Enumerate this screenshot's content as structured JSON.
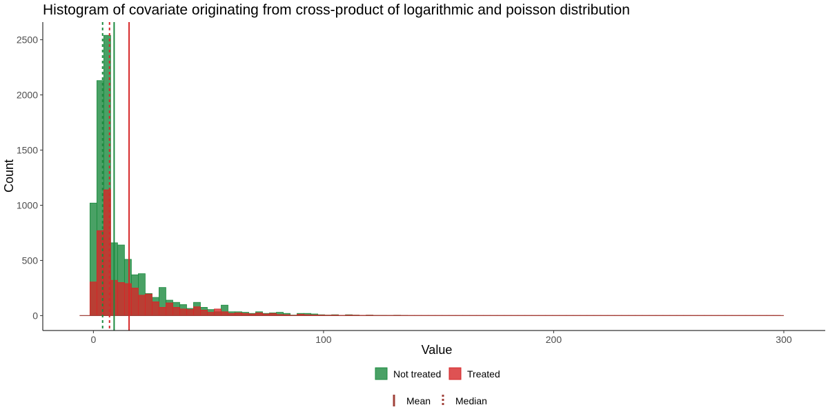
{
  "chart_data": {
    "type": "bar",
    "title": "Histogram of covariate originating from cross-product of logarithmic and poisson distribution",
    "xlabel": "Value",
    "ylabel": "Count",
    "xlim": [
      -22,
      318
    ],
    "ylim": [
      -135,
      2660
    ],
    "x_ticks": [
      0,
      100,
      200,
      300
    ],
    "x_tick_labels": [
      "0",
      "100",
      "200",
      "300"
    ],
    "y_ticks": [
      0,
      500,
      1000,
      1500,
      2000,
      2500
    ],
    "y_tick_labels": [
      "0",
      "500",
      "1000",
      "1500",
      "2000",
      "2500"
    ],
    "grid": false,
    "bin_width": 3,
    "bar_bottom": 0,
    "baseline_range": [
      -6,
      300
    ],
    "series": [
      {
        "name": "Not treated",
        "color": "#1b8a3e",
        "bins": [
          [
            0,
            1020
          ],
          [
            3,
            2130
          ],
          [
            6,
            2540
          ],
          [
            9,
            660
          ],
          [
            12,
            640
          ],
          [
            15,
            510
          ],
          [
            18,
            370
          ],
          [
            21,
            380
          ],
          [
            24,
            200
          ],
          [
            27,
            165
          ],
          [
            30,
            255
          ],
          [
            33,
            140
          ],
          [
            36,
            120
          ],
          [
            39,
            100
          ],
          [
            42,
            65
          ],
          [
            45,
            120
          ],
          [
            48,
            75
          ],
          [
            51,
            55
          ],
          [
            54,
            35
          ],
          [
            57,
            95
          ],
          [
            60,
            35
          ],
          [
            63,
            35
          ],
          [
            66,
            30
          ],
          [
            69,
            20
          ],
          [
            72,
            35
          ],
          [
            75,
            20
          ],
          [
            78,
            25
          ],
          [
            81,
            30
          ],
          [
            84,
            20
          ],
          [
            87,
            5
          ],
          [
            90,
            20
          ],
          [
            93,
            20
          ],
          [
            96,
            15
          ],
          [
            99,
            8
          ],
          [
            102,
            5
          ],
          [
            105,
            8
          ],
          [
            108,
            3
          ],
          [
            111,
            8
          ],
          [
            114,
            5
          ],
          [
            117,
            3
          ],
          [
            120,
            5
          ],
          [
            123,
            3
          ],
          [
            126,
            3
          ],
          [
            129,
            2
          ],
          [
            132,
            4
          ],
          [
            135,
            2
          ]
        ]
      },
      {
        "name": "Treated",
        "color": "#d62728",
        "bins": [
          [
            0,
            305
          ],
          [
            3,
            770
          ],
          [
            6,
            1140
          ],
          [
            9,
            320
          ],
          [
            12,
            300
          ],
          [
            15,
            290
          ],
          [
            18,
            250
          ],
          [
            21,
            185
          ],
          [
            24,
            195
          ],
          [
            27,
            125
          ],
          [
            30,
            75
          ],
          [
            33,
            115
          ],
          [
            36,
            75
          ],
          [
            39,
            60
          ],
          [
            42,
            55
          ],
          [
            45,
            80
          ],
          [
            48,
            50
          ],
          [
            51,
            30
          ],
          [
            54,
            60
          ],
          [
            57,
            35
          ],
          [
            60,
            20
          ],
          [
            63,
            25
          ],
          [
            66,
            20
          ],
          [
            69,
            15
          ],
          [
            72,
            25
          ],
          [
            75,
            15
          ],
          [
            78,
            20
          ],
          [
            81,
            10
          ],
          [
            84,
            8
          ],
          [
            87,
            3
          ],
          [
            90,
            12
          ],
          [
            93,
            8
          ],
          [
            96,
            6
          ],
          [
            99,
            5
          ],
          [
            102,
            4
          ],
          [
            105,
            5
          ],
          [
            108,
            3
          ],
          [
            111,
            5
          ],
          [
            114,
            4
          ],
          [
            117,
            3
          ],
          [
            120,
            4
          ],
          [
            123,
            2
          ],
          [
            126,
            2
          ],
          [
            129,
            2
          ],
          [
            132,
            3
          ],
          [
            135,
            2
          ],
          [
            138,
            2
          ],
          [
            141,
            2
          ],
          [
            144,
            2
          ],
          [
            147,
            2
          ],
          [
            150,
            2
          ],
          [
            153,
            2
          ],
          [
            156,
            2
          ],
          [
            159,
            2
          ],
          [
            162,
            2
          ],
          [
            165,
            2
          ],
          [
            168,
            2
          ],
          [
            171,
            2
          ],
          [
            174,
            2
          ],
          [
            177,
            2
          ],
          [
            180,
            2
          ],
          [
            183,
            2
          ],
          [
            186,
            2
          ],
          [
            189,
            2
          ],
          [
            192,
            2
          ],
          [
            195,
            2
          ],
          [
            198,
            2
          ],
          [
            201,
            2
          ],
          [
            204,
            2
          ],
          [
            207,
            2
          ],
          [
            210,
            2
          ],
          [
            213,
            2
          ],
          [
            216,
            2
          ],
          [
            219,
            2
          ],
          [
            222,
            2
          ],
          [
            225,
            2
          ],
          [
            228,
            2
          ],
          [
            231,
            2
          ],
          [
            234,
            2
          ],
          [
            237,
            2
          ],
          [
            240,
            2
          ],
          [
            243,
            2
          ],
          [
            246,
            2
          ],
          [
            249,
            2
          ],
          [
            252,
            2
          ],
          [
            255,
            2
          ],
          [
            258,
            2
          ],
          [
            261,
            2
          ],
          [
            264,
            2
          ],
          [
            267,
            2
          ],
          [
            270,
            2
          ],
          [
            273,
            2
          ],
          [
            276,
            2
          ],
          [
            279,
            2
          ],
          [
            282,
            2
          ],
          [
            285,
            2
          ],
          [
            288,
            2
          ],
          [
            291,
            2
          ],
          [
            294,
            2
          ],
          [
            297,
            2
          ]
        ]
      }
    ],
    "reference_lines": [
      {
        "series": "Not treated",
        "stat": "Mean",
        "x": 9,
        "style": "solid",
        "color": "#1b8a3e"
      },
      {
        "series": "Not treated",
        "stat": "Median",
        "x": 4,
        "style": "dashed",
        "color": "#1b8a3e"
      },
      {
        "series": "Treated",
        "stat": "Mean",
        "x": 15.5,
        "style": "solid",
        "color": "#d62728"
      },
      {
        "series": "Treated",
        "stat": "Median",
        "x": 7,
        "style": "dashed",
        "color": "#d62728"
      }
    ],
    "legend_fill": {
      "placement": "bottom",
      "items": [
        {
          "label": "Not treated",
          "color": "#1b8a3e"
        },
        {
          "label": "Treated",
          "color": "#d62728"
        }
      ]
    },
    "legend_line": {
      "placement": "bottom",
      "color": "#a0413a",
      "items": [
        {
          "label": "Mean",
          "style": "solid"
        },
        {
          "label": "Median",
          "style": "dashed"
        }
      ]
    }
  }
}
